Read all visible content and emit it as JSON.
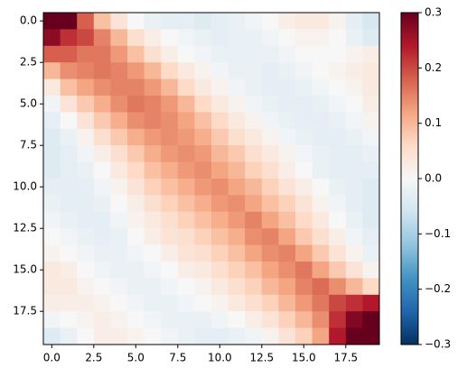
{
  "chart_data": {
    "type": "heatmap",
    "title": "",
    "xlabel": "",
    "ylabel": "",
    "colormap": "RdBu_r",
    "vmin": -0.3,
    "vmax": 0.3,
    "n_rows": 20,
    "n_cols": 20,
    "x_ticks": [
      0.0,
      2.5,
      5.0,
      7.5,
      10.0,
      12.5,
      15.0,
      17.5
    ],
    "x_tick_labels": [
      "0.0",
      "2.5",
      "5.0",
      "7.5",
      "10.0",
      "12.5",
      "15.0",
      "17.5"
    ],
    "y_ticks": [
      0.0,
      2.5,
      5.0,
      7.5,
      10.0,
      12.5,
      15.0,
      17.5
    ],
    "y_tick_labels": [
      "0.0",
      "2.5",
      "5.0",
      "7.5",
      "10.0",
      "12.5",
      "15.0",
      "17.5"
    ],
    "colorbar_ticks": [
      -0.3,
      -0.2,
      -0.1,
      0.0,
      0.1,
      0.2,
      0.3
    ],
    "colorbar_tick_labels": [
      "−0.3",
      "−0.2",
      "−0.1",
      "0.0",
      "0.1",
      "0.2",
      "0.3"
    ],
    "values": [
      [
        0.3,
        0.3,
        0.18,
        0.09,
        0.04,
        0.0,
        -0.02,
        -0.03,
        -0.03,
        -0.04,
        -0.03,
        -0.02,
        -0.01,
        0.0,
        0.02,
        0.03,
        0.03,
        0.01,
        -0.03,
        -0.05
      ],
      [
        0.27,
        0.22,
        0.2,
        0.15,
        0.1,
        0.05,
        0.02,
        0.0,
        -0.01,
        -0.02,
        -0.03,
        -0.02,
        -0.02,
        -0.01,
        0.0,
        0.01,
        0.01,
        0.0,
        -0.02,
        -0.04
      ],
      [
        0.18,
        0.18,
        0.16,
        0.16,
        0.13,
        0.09,
        0.05,
        0.02,
        0.0,
        -0.01,
        -0.02,
        -0.02,
        -0.02,
        -0.02,
        -0.01,
        0.0,
        0.0,
        0.0,
        0.01,
        0.02
      ],
      [
        0.1,
        0.14,
        0.15,
        0.16,
        0.15,
        0.13,
        0.1,
        0.06,
        0.03,
        0.01,
        -0.01,
        -0.02,
        -0.02,
        -0.03,
        -0.02,
        -0.01,
        0.0,
        0.01,
        0.02,
        0.03
      ],
      [
        0.03,
        0.09,
        0.12,
        0.14,
        0.15,
        0.15,
        0.13,
        0.1,
        0.06,
        0.03,
        0.01,
        -0.01,
        -0.02,
        -0.03,
        -0.03,
        -0.02,
        -0.01,
        0.0,
        0.01,
        0.03
      ],
      [
        -0.01,
        0.04,
        0.08,
        0.11,
        0.14,
        0.16,
        0.15,
        0.13,
        0.1,
        0.06,
        0.03,
        0.01,
        -0.01,
        -0.02,
        -0.03,
        -0.03,
        -0.02,
        -0.01,
        0.0,
        0.02
      ],
      [
        -0.03,
        0.0,
        0.04,
        0.08,
        0.11,
        0.14,
        0.15,
        0.14,
        0.12,
        0.09,
        0.06,
        0.03,
        0.01,
        -0.01,
        -0.02,
        -0.03,
        -0.03,
        -0.02,
        -0.01,
        0.01
      ],
      [
        -0.04,
        -0.02,
        0.01,
        0.05,
        0.08,
        0.11,
        0.13,
        0.14,
        0.13,
        0.11,
        0.08,
        0.05,
        0.03,
        0.01,
        -0.01,
        -0.02,
        -0.03,
        -0.03,
        -0.02,
        -0.01
      ],
      [
        -0.04,
        -0.03,
        -0.01,
        0.02,
        0.05,
        0.08,
        0.11,
        0.13,
        0.14,
        0.13,
        0.1,
        0.08,
        0.05,
        0.03,
        0.01,
        -0.01,
        -0.02,
        -0.03,
        -0.03,
        -0.02
      ],
      [
        -0.04,
        -0.03,
        -0.02,
        0.0,
        0.03,
        0.06,
        0.09,
        0.11,
        0.13,
        0.14,
        0.12,
        0.1,
        0.07,
        0.05,
        0.02,
        0.0,
        -0.02,
        -0.03,
        -0.03,
        -0.03
      ],
      [
        -0.03,
        -0.03,
        -0.03,
        -0.01,
        0.01,
        0.04,
        0.07,
        0.09,
        0.11,
        0.13,
        0.14,
        0.12,
        0.1,
        0.07,
        0.04,
        0.02,
        0.0,
        -0.02,
        -0.03,
        -0.04
      ],
      [
        -0.02,
        -0.03,
        -0.03,
        -0.02,
        0.0,
        0.02,
        0.05,
        0.07,
        0.09,
        0.11,
        0.13,
        0.14,
        0.12,
        0.09,
        0.07,
        0.04,
        0.01,
        -0.01,
        -0.03,
        -0.04
      ],
      [
        -0.01,
        -0.02,
        -0.03,
        -0.03,
        -0.01,
        0.01,
        0.03,
        0.05,
        0.07,
        0.09,
        0.11,
        0.13,
        0.15,
        0.12,
        0.09,
        0.06,
        0.03,
        0.0,
        -0.02,
        -0.04
      ],
      [
        0.0,
        -0.01,
        -0.02,
        -0.03,
        -0.02,
        0.0,
        0.02,
        0.04,
        0.05,
        0.07,
        0.09,
        0.11,
        0.14,
        0.15,
        0.12,
        0.08,
        0.05,
        0.02,
        -0.01,
        -0.03
      ],
      [
        0.01,
        0.0,
        -0.01,
        -0.02,
        -0.02,
        -0.01,
        0.0,
        0.02,
        0.04,
        0.05,
        0.07,
        0.09,
        0.12,
        0.14,
        0.15,
        0.12,
        0.08,
        0.04,
        0.01,
        -0.02
      ],
      [
        0.03,
        0.02,
        0.0,
        -0.01,
        -0.02,
        -0.02,
        -0.01,
        0.0,
        0.02,
        0.03,
        0.05,
        0.07,
        0.09,
        0.12,
        0.14,
        0.16,
        0.12,
        0.08,
        0.04,
        0.01
      ],
      [
        0.03,
        0.03,
        0.01,
        0.0,
        -0.01,
        -0.02,
        -0.02,
        -0.01,
        0.0,
        0.01,
        0.03,
        0.05,
        0.07,
        0.1,
        0.12,
        0.15,
        0.17,
        0.14,
        0.1,
        0.06
      ],
      [
        0.02,
        0.02,
        0.02,
        0.01,
        0.0,
        -0.01,
        -0.02,
        -0.02,
        -0.01,
        0.0,
        0.01,
        0.03,
        0.05,
        0.07,
        0.1,
        0.13,
        0.16,
        0.2,
        0.22,
        0.24
      ],
      [
        -0.01,
        0.0,
        0.01,
        0.02,
        0.01,
        0.0,
        -0.01,
        -0.02,
        -0.02,
        -0.02,
        -0.01,
        0.0,
        0.02,
        0.04,
        0.07,
        0.1,
        0.14,
        0.22,
        0.28,
        0.3
      ],
      [
        -0.04,
        -0.02,
        0.0,
        0.02,
        0.02,
        0.01,
        0.0,
        -0.01,
        -0.02,
        -0.03,
        -0.03,
        -0.02,
        -0.01,
        0.01,
        0.04,
        0.07,
        0.12,
        0.24,
        0.3,
        0.3
      ]
    ]
  }
}
